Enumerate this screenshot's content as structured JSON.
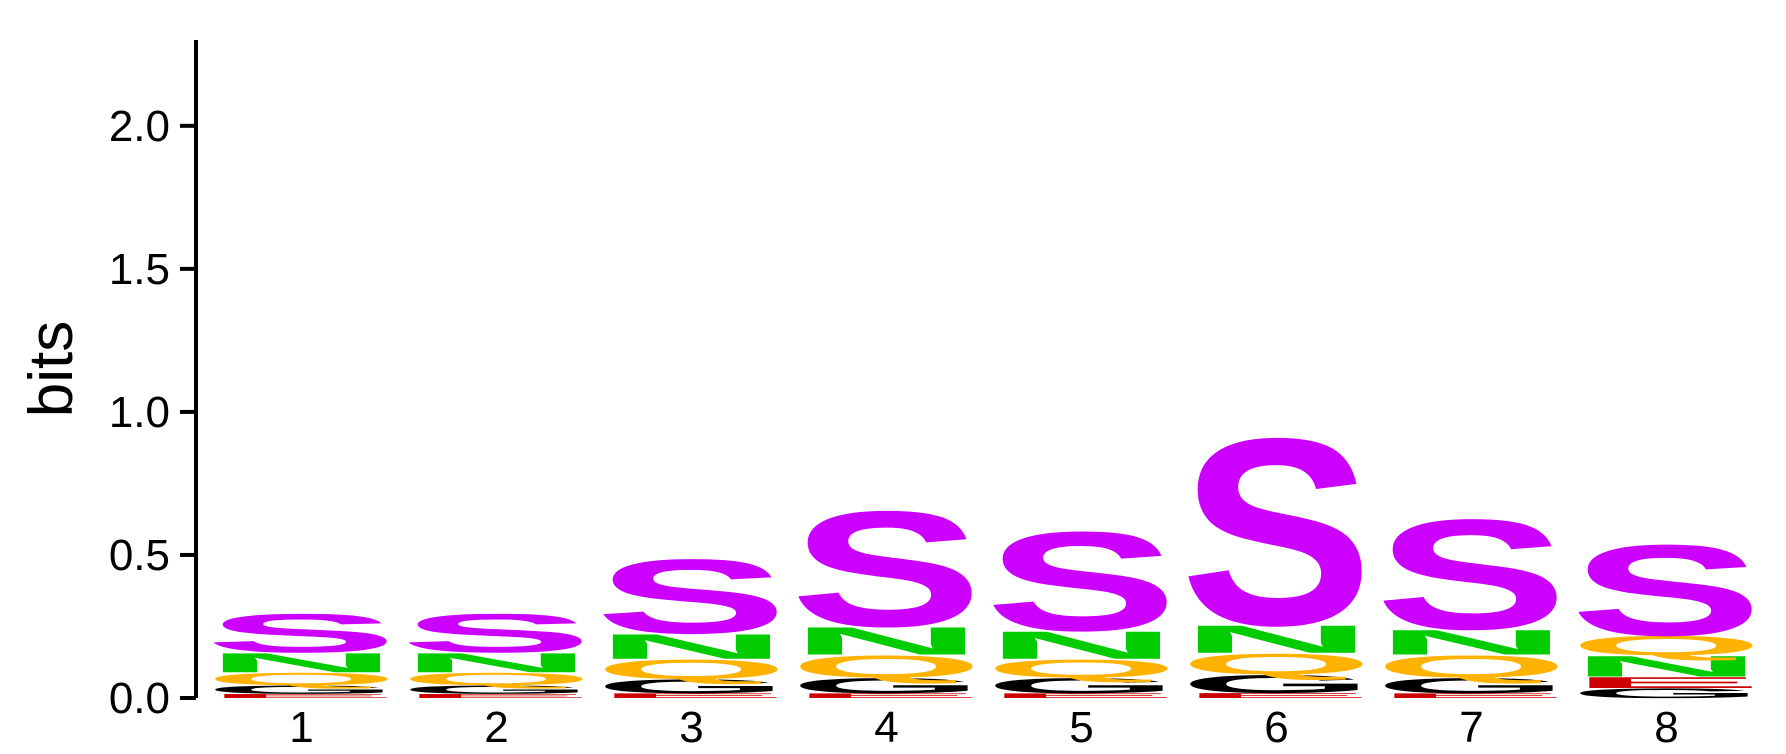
{
  "chart_data": {
    "type": "sequence-logo",
    "title": "",
    "xlabel": "",
    "ylabel": "bits",
    "ylim": [
      0,
      2.3
    ],
    "yticks": [
      "0.0",
      "0.5",
      "1.0",
      "1.5",
      "2.0"
    ],
    "ytick_values": [
      0,
      0.5,
      1.0,
      1.5,
      2.0
    ],
    "positions": [
      "1",
      "2",
      "3",
      "4",
      "5",
      "6",
      "7",
      "8"
    ],
    "colors": {
      "S": "#cc00ff",
      "N": "#00cc00",
      "Q": "#ffb300",
      "G": "#000000",
      "E": "#cc0000"
    },
    "stacks": [
      [
        {
          "letter": "E",
          "height": 0.015
        },
        {
          "letter": "G",
          "height": 0.03
        },
        {
          "letter": "Q",
          "height": 0.045
        },
        {
          "letter": "N",
          "height": 0.07
        },
        {
          "letter": "S",
          "height": 0.14
        }
      ],
      [
        {
          "letter": "E",
          "height": 0.015
        },
        {
          "letter": "G",
          "height": 0.03
        },
        {
          "letter": "Q",
          "height": 0.045
        },
        {
          "letter": "N",
          "height": 0.07
        },
        {
          "letter": "S",
          "height": 0.14
        }
      ],
      [
        {
          "letter": "E",
          "height": 0.017
        },
        {
          "letter": "G",
          "height": 0.05
        },
        {
          "letter": "Q",
          "height": 0.07
        },
        {
          "letter": "N",
          "height": 0.09
        },
        {
          "letter": "S",
          "height": 0.27
        }
      ],
      [
        {
          "letter": "E",
          "height": 0.017
        },
        {
          "letter": "G",
          "height": 0.055
        },
        {
          "letter": "Q",
          "height": 0.08
        },
        {
          "letter": "N",
          "height": 0.1
        },
        {
          "letter": "S",
          "height": 0.42
        }
      ],
      [
        {
          "letter": "E",
          "height": 0.017
        },
        {
          "letter": "G",
          "height": 0.055
        },
        {
          "letter": "Q",
          "height": 0.065
        },
        {
          "letter": "N",
          "height": 0.1
        },
        {
          "letter": "S",
          "height": 0.36
        }
      ],
      [
        {
          "letter": "E",
          "height": 0.018
        },
        {
          "letter": "G",
          "height": 0.065
        },
        {
          "letter": "Q",
          "height": 0.075
        },
        {
          "letter": "N",
          "height": 0.1
        },
        {
          "letter": "S",
          "height": 0.68
        }
      ],
      [
        {
          "letter": "E",
          "height": 0.017
        },
        {
          "letter": "G",
          "height": 0.055
        },
        {
          "letter": "Q",
          "height": 0.08
        },
        {
          "letter": "N",
          "height": 0.09
        },
        {
          "letter": "S",
          "height": 0.4
        }
      ],
      [
        {
          "letter": "G",
          "height": 0.035
        },
        {
          "letter": "E",
          "height": 0.04
        },
        {
          "letter": "N",
          "height": 0.075
        },
        {
          "letter": "Q",
          "height": 0.07
        },
        {
          "letter": "S",
          "height": 0.33
        }
      ]
    ]
  }
}
